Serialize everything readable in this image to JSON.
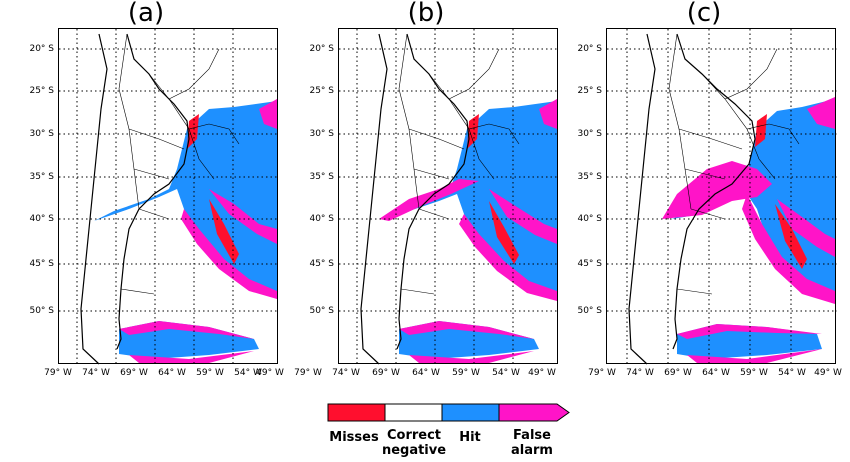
{
  "panels": [
    {
      "label": "(a)"
    },
    {
      "label": "(b)"
    },
    {
      "label": "(c)"
    }
  ],
  "lat_ticks": [
    "20° S",
    "25° S",
    "30° S",
    "35° S",
    "40° S",
    "45° S",
    "50° S"
  ],
  "lon_ticks": [
    "79° W",
    "74° W",
    "69° W",
    "64° W",
    "59° W",
    "54° W",
    "49° W"
  ],
  "legend": {
    "items": [
      {
        "label": "Misses",
        "color": "#ff0f2e"
      },
      {
        "label": "Correct negative",
        "color": "#ffffff"
      },
      {
        "label": "Hit",
        "color": "#1e90ff"
      },
      {
        "label": "False alarm",
        "color": "#ff14c8"
      }
    ]
  },
  "colors": {
    "misses": "#ff0f2e",
    "hit": "#1e90ff",
    "false_alarm": "#ff14c8",
    "land_outline": "#000000"
  }
}
